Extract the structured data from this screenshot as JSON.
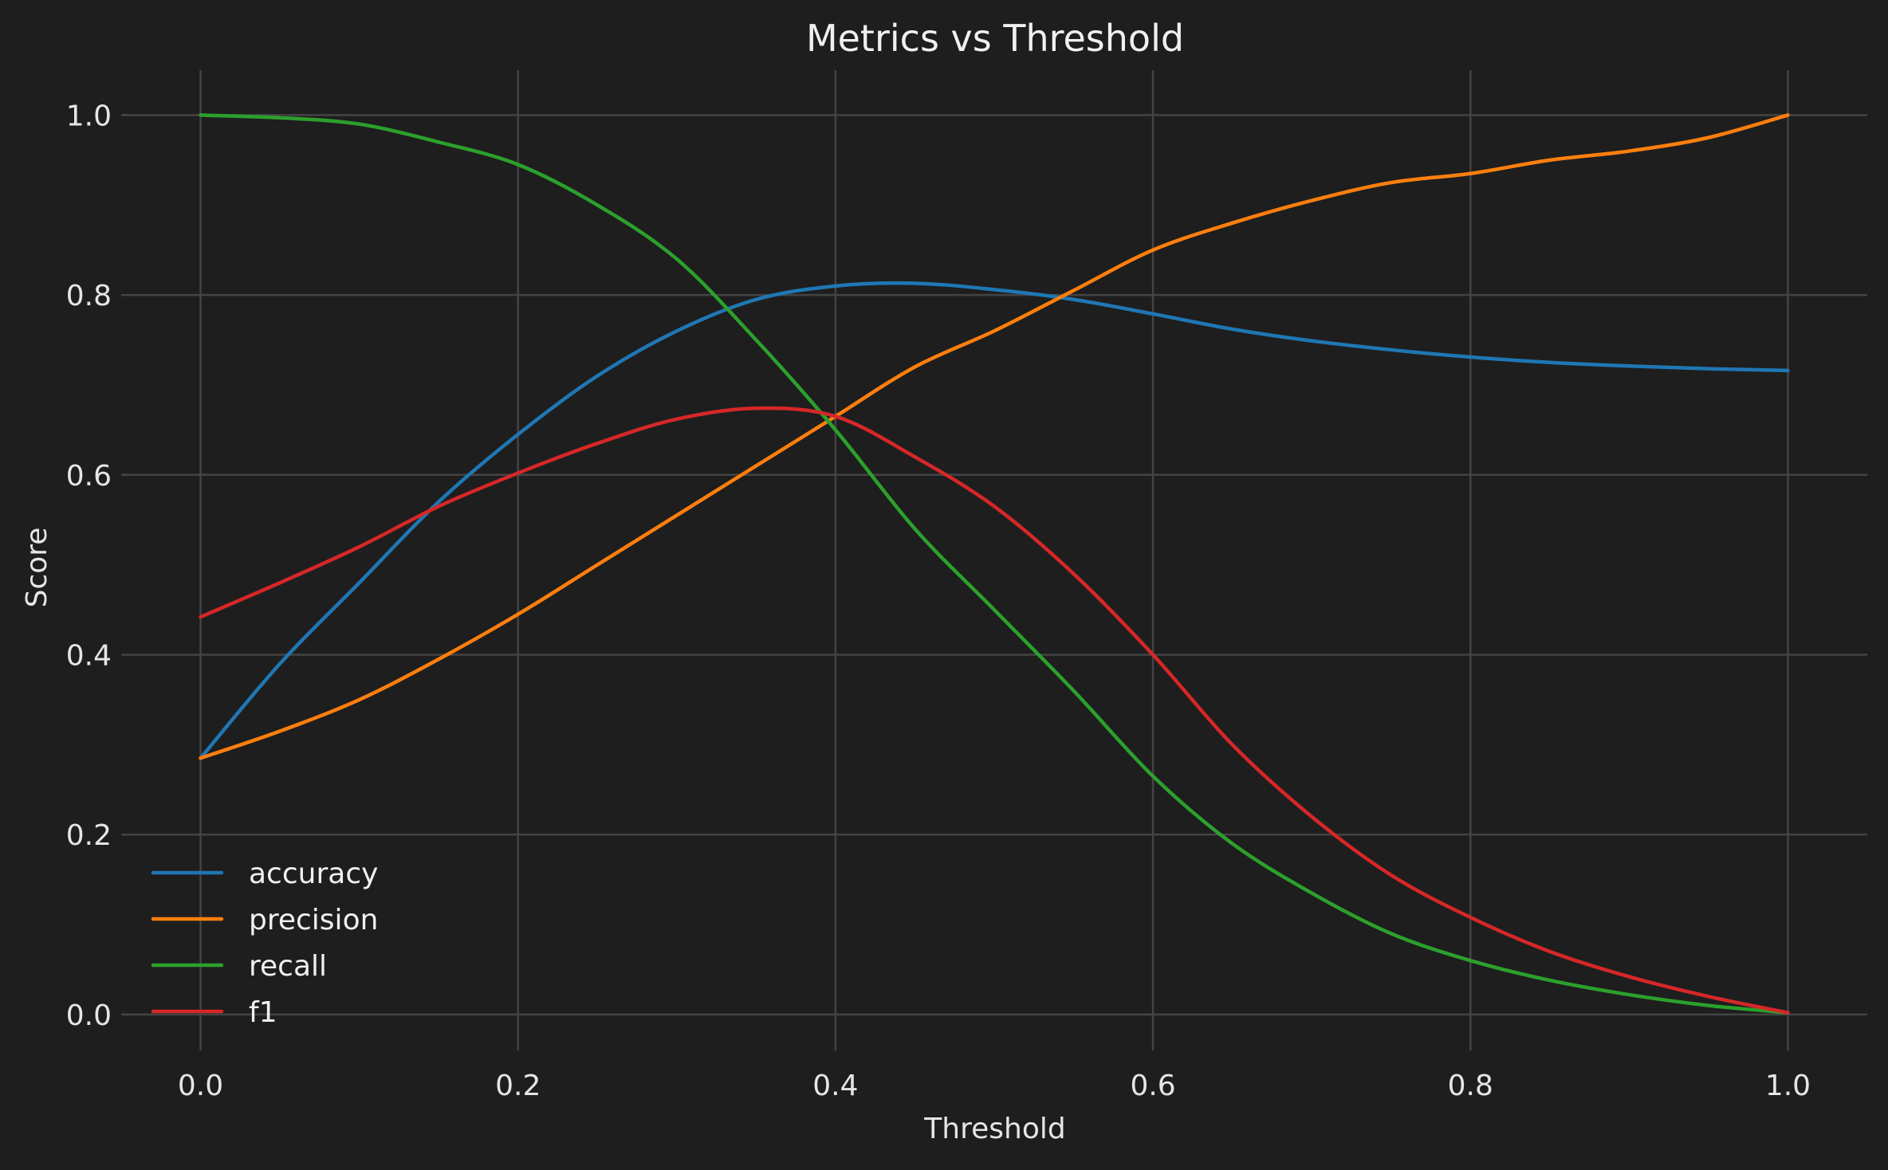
{
  "chart_data": {
    "type": "line",
    "title": "Metrics vs Threshold",
    "xlabel": "Threshold",
    "ylabel": "Score",
    "xlim": [
      -0.05,
      1.05
    ],
    "ylim": [
      -0.04,
      1.05
    ],
    "xticks": [
      "0.0",
      "0.2",
      "0.4",
      "0.6",
      "0.8",
      "1.0"
    ],
    "yticks": [
      "0.0",
      "0.2",
      "0.4",
      "0.6",
      "0.8",
      "1.0"
    ],
    "grid": true,
    "legend_position": "lower-left",
    "x": [
      0.0,
      0.05,
      0.1,
      0.15,
      0.2,
      0.25,
      0.3,
      0.35,
      0.4,
      0.45,
      0.5,
      0.55,
      0.6,
      0.65,
      0.7,
      0.75,
      0.8,
      0.85,
      0.9,
      0.95,
      1.0
    ],
    "series": [
      {
        "name": "accuracy",
        "color": "#1f77b4",
        "values": [
          0.285,
          0.39,
          0.48,
          0.57,
          0.645,
          0.71,
          0.76,
          0.795,
          0.81,
          0.813,
          0.806,
          0.795,
          0.779,
          0.762,
          0.749,
          0.739,
          0.731,
          0.725,
          0.721,
          0.718,
          0.716
        ]
      },
      {
        "name": "precision",
        "color": "#ff7f0e",
        "values": [
          0.285,
          0.315,
          0.35,
          0.395,
          0.445,
          0.5,
          0.555,
          0.61,
          0.665,
          0.72,
          0.76,
          0.805,
          0.85,
          0.88,
          0.905,
          0.925,
          0.935,
          0.95,
          0.96,
          0.975,
          1.0
        ]
      },
      {
        "name": "recall",
        "color": "#2ca02c",
        "values": [
          1.0,
          0.997,
          0.99,
          0.97,
          0.945,
          0.9,
          0.84,
          0.75,
          0.65,
          0.54,
          0.45,
          0.36,
          0.265,
          0.19,
          0.135,
          0.09,
          0.06,
          0.038,
          0.022,
          0.01,
          0.002
        ]
      },
      {
        "name": "f1",
        "color": "#d62728",
        "values": [
          0.442,
          0.48,
          0.52,
          0.565,
          0.602,
          0.635,
          0.662,
          0.674,
          0.665,
          0.62,
          0.565,
          0.49,
          0.4,
          0.3,
          0.22,
          0.155,
          0.108,
          0.07,
          0.042,
          0.02,
          0.002
        ]
      }
    ]
  }
}
